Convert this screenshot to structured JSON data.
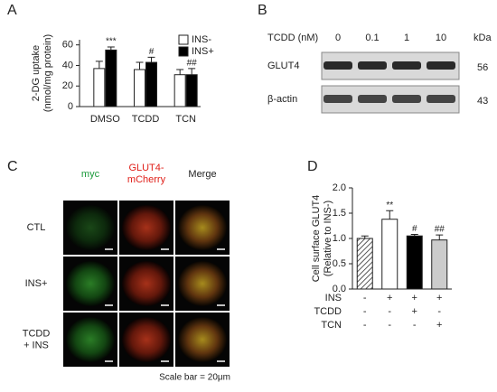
{
  "chart_data": [
    {
      "type": "bar",
      "panel": "A",
      "ylabel": [
        "2-DG uptake",
        "(nmol/mg protein)"
      ],
      "categories": [
        "DMSO",
        "TCDD",
        "TCN"
      ],
      "series": [
        {
          "name": "INS-",
          "color": "#ffffff",
          "values": [
            37,
            36,
            31
          ],
          "errors": [
            7,
            7,
            5
          ]
        },
        {
          "name": "INS+",
          "color": "#000000",
          "values": [
            55,
            43,
            31
          ],
          "errors": [
            3,
            5,
            6
          ],
          "marks": [
            "***",
            "#",
            "##"
          ]
        }
      ],
      "ylim": [
        0,
        65
      ],
      "yticks": [
        0,
        20,
        40,
        60
      ],
      "legend": "upper right"
    },
    {
      "type": "bar",
      "panel": "D",
      "ylabel": [
        "Cell surface GLUT4",
        "(Relative to INS-)"
      ],
      "values": [
        1.0,
        1.38,
        1.05,
        0.97
      ],
      "errors": [
        0.05,
        0.17,
        0.03,
        0.1
      ],
      "colors": [
        "#ffffff",
        "#ffffff",
        "#000000",
        "#cccccc"
      ],
      "hatch": [
        true,
        false,
        false,
        false
      ],
      "marks": [
        null,
        "**",
        "#",
        "##"
      ],
      "ylim": [
        0,
        2
      ],
      "yticks": [
        {
          "value": 0,
          "label": "0.0"
        },
        0.5,
        {
          "value": 1,
          "label": "1.0"
        },
        1.5,
        {
          "value": 2,
          "label": "2.0"
        }
      ],
      "conditions": [
        {
          "label": "INS",
          "signs": [
            "-",
            "+",
            "+",
            "+"
          ]
        },
        {
          "label": "TCDD",
          "signs": [
            "-",
            "-",
            "+",
            "-"
          ]
        },
        {
          "label": "TCN",
          "signs": [
            "-",
            "-",
            "-",
            "+"
          ]
        }
      ]
    }
  ],
  "blot": {
    "panel": "B",
    "header": "TCDD (nM)",
    "doses": [
      "0",
      "0.1",
      "1",
      "10"
    ],
    "unit": "kDa",
    "rows": [
      {
        "label": "GLUT4",
        "kda": 56
      },
      {
        "label": "β-actin",
        "kda": 43
      }
    ]
  },
  "microscopy": {
    "panel": "C",
    "columns": [
      {
        "lines": [
          "myc"
        ],
        "color": "#1a9a3a"
      },
      {
        "lines": [
          "GLUT4-",
          "mCherry"
        ],
        "color": "#e0201a"
      },
      {
        "lines": [
          "Merge"
        ],
        "color": "#222222"
      }
    ],
    "rows": [
      [
        "CTL"
      ],
      [
        "INS+"
      ],
      [
        "TCDD",
        "+ INS"
      ]
    ],
    "scale_bar": "Scale bar = 20μm"
  }
}
